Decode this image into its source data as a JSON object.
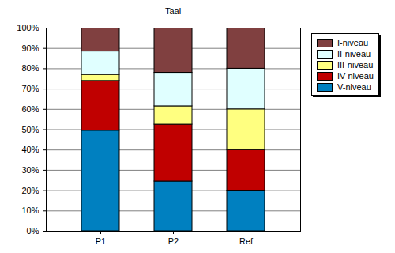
{
  "chart_data": {
    "type": "bar",
    "title": "Taal",
    "categories": [
      "P1",
      "P2",
      "Ref"
    ],
    "stacked": true,
    "grid": true,
    "legend": "top-right",
    "series": [
      {
        "name": "V-niveau",
        "color": "#0080c0",
        "values": [
          49.5,
          24.5,
          20
        ]
      },
      {
        "name": "IV-niveau",
        "color": "#c00000",
        "values": [
          24.5,
          28,
          20
        ]
      },
      {
        "name": "III-niveau",
        "color": "#ffff80",
        "values": [
          3,
          9,
          20
        ]
      },
      {
        "name": "II-niveau",
        "color": "#e0ffff",
        "values": [
          11.5,
          16.5,
          20
        ]
      },
      {
        "name": "I-niveau",
        "color": "#804040",
        "values": [
          11.5,
          22,
          20
        ]
      }
    ],
    "ylim": [
      0,
      100
    ],
    "yticks": [
      {
        "value": 0,
        "label": "0%"
      },
      {
        "value": 10,
        "label": "10%"
      },
      {
        "value": 20,
        "label": "20%"
      },
      {
        "value": 30,
        "label": "30%"
      },
      {
        "value": 40,
        "label": "40%"
      },
      {
        "value": 50,
        "label": "50%"
      },
      {
        "value": 60,
        "label": "60%"
      },
      {
        "value": 70,
        "label": "70%"
      },
      {
        "value": 80,
        "label": "80%"
      },
      {
        "value": 90,
        "label": "90%"
      },
      {
        "value": 100,
        "label": "100%"
      }
    ]
  }
}
